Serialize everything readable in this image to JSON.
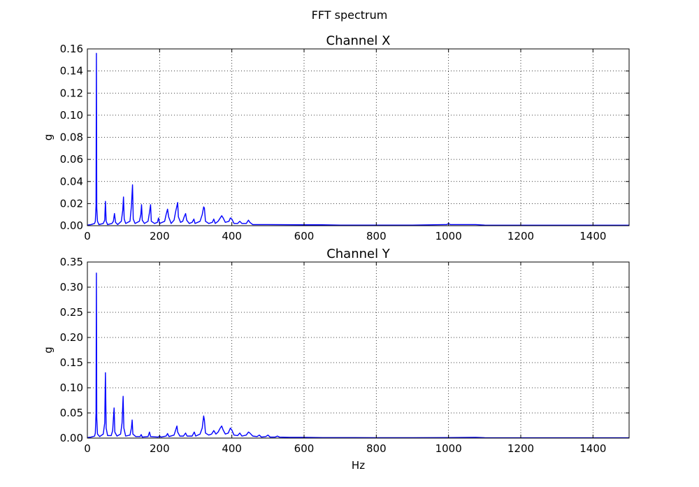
{
  "figure": {
    "suptitle": "FFT spectrum"
  },
  "colors": {
    "line": "#0000ff",
    "grid": "#000000",
    "axes": "#000000",
    "background": "#ffffff"
  },
  "chart_data": [
    {
      "type": "line",
      "title": "Channel X",
      "xlabel": "",
      "ylabel": "g",
      "xlim": [
        0,
        1500
      ],
      "ylim": [
        0,
        0.16
      ],
      "xticks": [
        0,
        200,
        400,
        600,
        800,
        1000,
        1200,
        1400
      ],
      "yticks": [
        0.0,
        0.02,
        0.04,
        0.06,
        0.08,
        0.1,
        0.12,
        0.14,
        0.16
      ],
      "xtick_labels": [
        "0",
        "200",
        "400",
        "600",
        "800",
        "1000",
        "1200",
        "1400"
      ],
      "ytick_labels": [
        "0.00",
        "0.02",
        "0.04",
        "0.06",
        "0.08",
        "0.10",
        "0.12",
        "0.14",
        "0.16"
      ],
      "grid": true,
      "series": [
        {
          "points": [
            [
              0,
              0.0005
            ],
            [
              10,
              0.001
            ],
            [
              20,
              0.002
            ],
            [
              22,
              0.004
            ],
            [
              24,
              0.018
            ],
            [
              25,
              0.156
            ],
            [
              26,
              0.016
            ],
            [
              28,
              0.004
            ],
            [
              32,
              0.001
            ],
            [
              44,
              0.002
            ],
            [
              48,
              0.005
            ],
            [
              50,
              0.022
            ],
            [
              52,
              0.004
            ],
            [
              56,
              0.001
            ],
            [
              68,
              0.002
            ],
            [
              72,
              0.004
            ],
            [
              75,
              0.011
            ],
            [
              78,
              0.003
            ],
            [
              84,
              0.001
            ],
            [
              94,
              0.004
            ],
            [
              98,
              0.014
            ],
            [
              100,
              0.026
            ],
            [
              102,
              0.006
            ],
            [
              106,
              0.002
            ],
            [
              118,
              0.004
            ],
            [
              122,
              0.018
            ],
            [
              125,
              0.037
            ],
            [
              127,
              0.006
            ],
            [
              132,
              0.002
            ],
            [
              144,
              0.004
            ],
            [
              148,
              0.01
            ],
            [
              150,
              0.019
            ],
            [
              152,
              0.005
            ],
            [
              158,
              0.002
            ],
            [
              168,
              0.004
            ],
            [
              172,
              0.012
            ],
            [
              175,
              0.019
            ],
            [
              177,
              0.004
            ],
            [
              186,
              0.002
            ],
            [
              194,
              0.003
            ],
            [
              197,
              0.007
            ],
            [
              200,
              0.002
            ],
            [
              214,
              0.004
            ],
            [
              218,
              0.01
            ],
            [
              222,
              0.015
            ],
            [
              225,
              0.008
            ],
            [
              232,
              0.002
            ],
            [
              240,
              0.005
            ],
            [
              244,
              0.012
            ],
            [
              248,
              0.018
            ],
            [
              250,
              0.021
            ],
            [
              252,
              0.008
            ],
            [
              258,
              0.003
            ],
            [
              264,
              0.004
            ],
            [
              268,
              0.008
            ],
            [
              272,
              0.011
            ],
            [
              275,
              0.005
            ],
            [
              282,
              0.002
            ],
            [
              290,
              0.003
            ],
            [
              295,
              0.006
            ],
            [
              298,
              0.002
            ],
            [
              312,
              0.004
            ],
            [
              318,
              0.01
            ],
            [
              322,
              0.017
            ],
            [
              324,
              0.016
            ],
            [
              327,
              0.004
            ],
            [
              336,
              0.002
            ],
            [
              346,
              0.003
            ],
            [
              350,
              0.006
            ],
            [
              354,
              0.002
            ],
            [
              362,
              0.004
            ],
            [
              368,
              0.007
            ],
            [
              372,
              0.009
            ],
            [
              376,
              0.007
            ],
            [
              382,
              0.003
            ],
            [
              392,
              0.004
            ],
            [
              396,
              0.007
            ],
            [
              400,
              0.006
            ],
            [
              406,
              0.002
            ],
            [
              416,
              0.002
            ],
            [
              422,
              0.004
            ],
            [
              428,
              0.002
            ],
            [
              440,
              0.002
            ],
            [
              446,
              0.005
            ],
            [
              450,
              0.003
            ],
            [
              458,
              0.001
            ],
            [
              500,
              0.001
            ],
            [
              600,
              0.0008
            ],
            [
              650,
              0.0008
            ],
            [
              700,
              0.0005
            ],
            [
              800,
              0.0005
            ],
            [
              900,
              0.0005
            ],
            [
              995,
              0.001
            ],
            [
              1000,
              0.002
            ],
            [
              1005,
              0.001
            ],
            [
              1075,
              0.001
            ],
            [
              1100,
              0.0005
            ],
            [
              1200,
              0.0004
            ],
            [
              1300,
              0.0004
            ],
            [
              1400,
              0.0004
            ],
            [
              1500,
              0.0004
            ]
          ]
        }
      ]
    },
    {
      "type": "line",
      "title": "Channel Y",
      "xlabel": "Hz",
      "ylabel": "g",
      "xlim": [
        0,
        1500
      ],
      "ylim": [
        0,
        0.35
      ],
      "xticks": [
        0,
        200,
        400,
        600,
        800,
        1000,
        1200,
        1400
      ],
      "yticks": [
        0.0,
        0.05,
        0.1,
        0.15,
        0.2,
        0.25,
        0.3,
        0.35
      ],
      "xtick_labels": [
        "0",
        "200",
        "400",
        "600",
        "800",
        "1000",
        "1200",
        "1400"
      ],
      "ytick_labels": [
        "0.00",
        "0.05",
        "0.10",
        "0.15",
        "0.20",
        "0.25",
        "0.30",
        "0.35"
      ],
      "grid": true,
      "series": [
        {
          "points": [
            [
              0,
              0.001
            ],
            [
              10,
              0.002
            ],
            [
              20,
              0.004
            ],
            [
              22,
              0.01
            ],
            [
              24,
              0.05
            ],
            [
              25,
              0.328
            ],
            [
              26,
              0.04
            ],
            [
              28,
              0.008
            ],
            [
              34,
              0.003
            ],
            [
              44,
              0.008
            ],
            [
              48,
              0.03
            ],
            [
              50,
              0.13
            ],
            [
              52,
              0.02
            ],
            [
              56,
              0.005
            ],
            [
              66,
              0.005
            ],
            [
              70,
              0.015
            ],
            [
              74,
              0.06
            ],
            [
              76,
              0.012
            ],
            [
              82,
              0.004
            ],
            [
              92,
              0.008
            ],
            [
              96,
              0.03
            ],
            [
              99,
              0.083
            ],
            [
              101,
              0.02
            ],
            [
              106,
              0.004
            ],
            [
              118,
              0.006
            ],
            [
              122,
              0.02
            ],
            [
              124,
              0.036
            ],
            [
              126,
              0.008
            ],
            [
              134,
              0.003
            ],
            [
              146,
              0.003
            ],
            [
              149,
              0.007
            ],
            [
              152,
              0.002
            ],
            [
              168,
              0.003
            ],
            [
              172,
              0.012
            ],
            [
              175,
              0.003
            ],
            [
              196,
              0.002
            ],
            [
              200,
              0.004
            ],
            [
              204,
              0.002
            ],
            [
              218,
              0.004
            ],
            [
              222,
              0.009
            ],
            [
              226,
              0.003
            ],
            [
              240,
              0.006
            ],
            [
              244,
              0.015
            ],
            [
              248,
              0.024
            ],
            [
              250,
              0.012
            ],
            [
              256,
              0.004
            ],
            [
              266,
              0.004
            ],
            [
              272,
              0.01
            ],
            [
              276,
              0.004
            ],
            [
              290,
              0.004
            ],
            [
              296,
              0.012
            ],
            [
              300,
              0.004
            ],
            [
              312,
              0.008
            ],
            [
              318,
              0.02
            ],
            [
              322,
              0.044
            ],
            [
              324,
              0.036
            ],
            [
              327,
              0.01
            ],
            [
              336,
              0.006
            ],
            [
              344,
              0.008
            ],
            [
              350,
              0.015
            ],
            [
              356,
              0.008
            ],
            [
              362,
              0.012
            ],
            [
              368,
              0.02
            ],
            [
              372,
              0.024
            ],
            [
              376,
              0.016
            ],
            [
              382,
              0.008
            ],
            [
              390,
              0.01
            ],
            [
              396,
              0.02
            ],
            [
              400,
              0.016
            ],
            [
              406,
              0.006
            ],
            [
              416,
              0.005
            ],
            [
              422,
              0.01
            ],
            [
              428,
              0.004
            ],
            [
              440,
              0.006
            ],
            [
              446,
              0.012
            ],
            [
              450,
              0.01
            ],
            [
              458,
              0.004
            ],
            [
              470,
              0.003
            ],
            [
              476,
              0.006
            ],
            [
              482,
              0.002
            ],
            [
              494,
              0.003
            ],
            [
              500,
              0.006
            ],
            [
              506,
              0.002
            ],
            [
              520,
              0.002
            ],
            [
              526,
              0.004
            ],
            [
              532,
              0.002
            ],
            [
              560,
              0.0015
            ],
            [
              600,
              0.0015
            ],
            [
              650,
              0.001
            ],
            [
              700,
              0.001
            ],
            [
              800,
              0.0008
            ],
            [
              900,
              0.0008
            ],
            [
              1000,
              0.001
            ],
            [
              1075,
              0.0015
            ],
            [
              1100,
              0.0008
            ],
            [
              1200,
              0.0006
            ],
            [
              1300,
              0.0006
            ],
            [
              1400,
              0.0006
            ],
            [
              1500,
              0.0006
            ]
          ]
        }
      ]
    }
  ]
}
